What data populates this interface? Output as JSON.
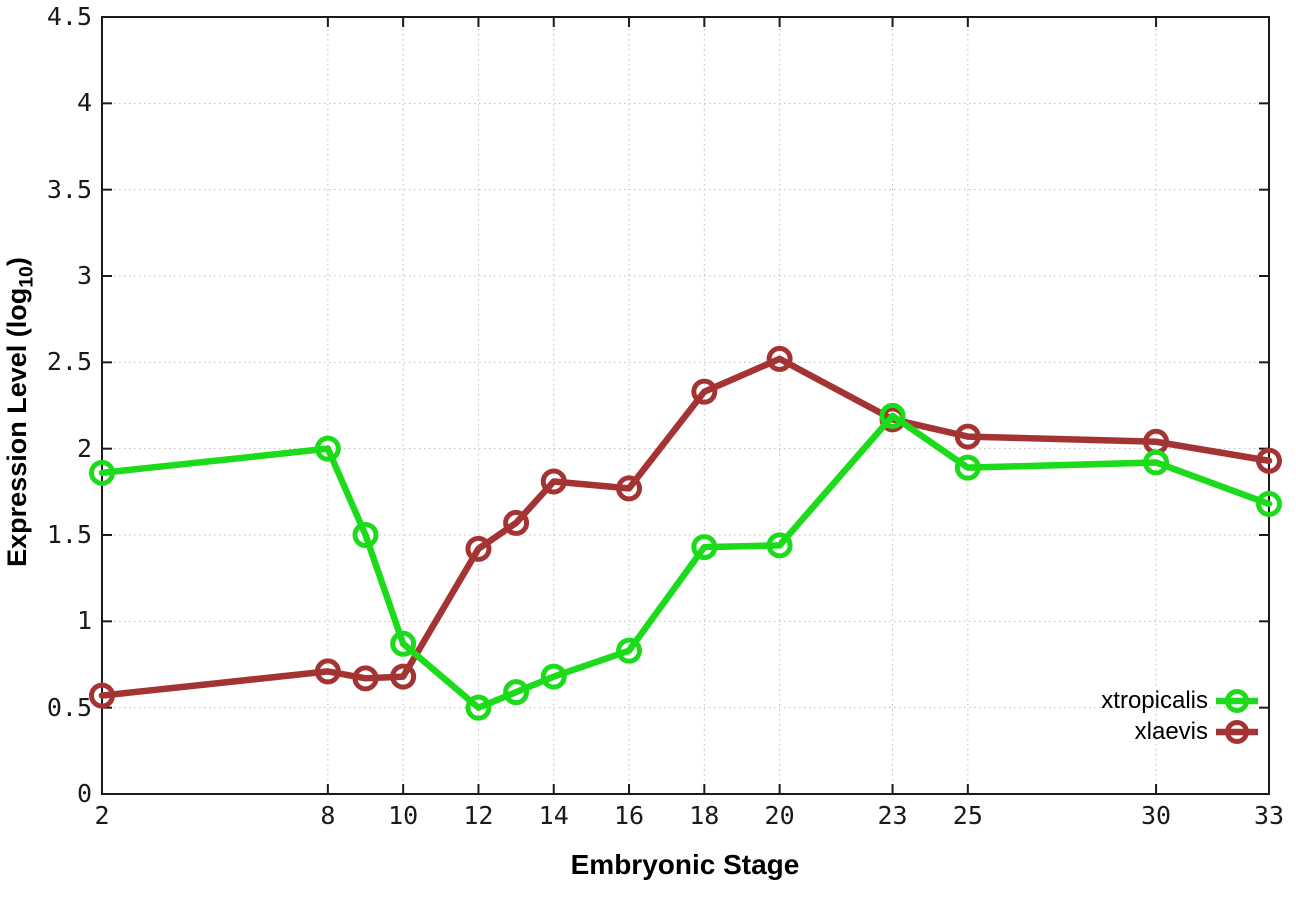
{
  "figure": {
    "background": "#ffffff"
  },
  "chart_data": {
    "type": "line",
    "title": "",
    "xlabel": "Embryonic Stage",
    "ylabel": "Expression Level (log10)",
    "ylabel_parts": {
      "main": "Expression Level (log",
      "sub": "10",
      "end": ")"
    },
    "xlim": [
      2,
      33
    ],
    "ylim": [
      0,
      4.5
    ],
    "x_ticks": [
      2,
      8,
      10,
      12,
      14,
      16,
      18,
      20,
      23,
      25,
      30,
      33
    ],
    "x_tick_labels": [
      "2",
      "8",
      "10",
      "12",
      "14",
      "16",
      "18",
      "20",
      "23",
      "25",
      "30",
      "33"
    ],
    "y_ticks": [
      0,
      0.5,
      1,
      1.5,
      2,
      2.5,
      3,
      3.5,
      4,
      4.5
    ],
    "y_tick_labels": [
      "0",
      "0.5",
      "1",
      "1.5",
      "2",
      "2.5",
      "3",
      "3.5",
      "4",
      "4.5"
    ],
    "grid": true,
    "legend_position": "inside-bottom-right",
    "series": [
      {
        "name": "xlaevis",
        "color": "#A43434",
        "x": [
          2,
          8,
          9,
          10,
          12,
          13,
          14,
          16,
          18,
          20,
          23,
          25,
          30,
          33
        ],
        "values": [
          0.57,
          0.71,
          0.67,
          0.68,
          1.42,
          1.57,
          1.81,
          1.77,
          2.33,
          2.52,
          2.17,
          2.07,
          2.04,
          1.93
        ]
      },
      {
        "name": "xtropicalis",
        "color": "#1BDB1B",
        "x": [
          2,
          8,
          9,
          10,
          12,
          13,
          14,
          16,
          18,
          20,
          23,
          25,
          30,
          33
        ],
        "values": [
          1.86,
          2.0,
          1.5,
          0.87,
          0.5,
          0.59,
          0.68,
          0.83,
          1.43,
          1.44,
          2.19,
          1.89,
          1.92,
          1.68
        ]
      }
    ]
  },
  "legend": {
    "items": [
      {
        "label": "xtropicalis",
        "color": "#1BDB1B"
      },
      {
        "label": "xlaevis",
        "color": "#A43434"
      }
    ]
  }
}
